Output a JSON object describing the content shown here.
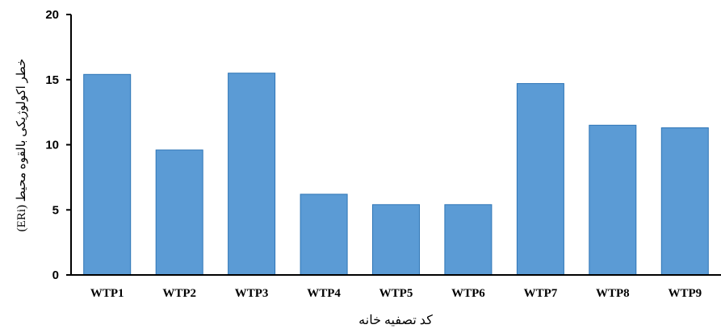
{
  "chart_data": {
    "type": "bar",
    "title": "",
    "xlabel": "کد تصفیه خانه",
    "ylabel": "خطر اکولوژیکی بالقوه محیط  (ERi)",
    "categories": [
      "WTP1",
      "WTP2",
      "WTP3",
      "WTP4",
      "WTP5",
      "WTP6",
      "WTP7",
      "WTP8",
      "WTP9"
    ],
    "series": [
      {
        "values": [
          15.4,
          9.6,
          15.5,
          6.2,
          5.4,
          5.4,
          14.7,
          11.5,
          11.3
        ]
      }
    ],
    "yticks": [
      "0",
      "5",
      "10",
      "15",
      "20"
    ],
    "ylim": [
      0,
      20
    ],
    "grid": false,
    "legend": "none",
    "colors": {
      "bar_fill": "#5B9BD5",
      "bar_stroke": "#2E75B6",
      "axis": "#000000"
    }
  }
}
